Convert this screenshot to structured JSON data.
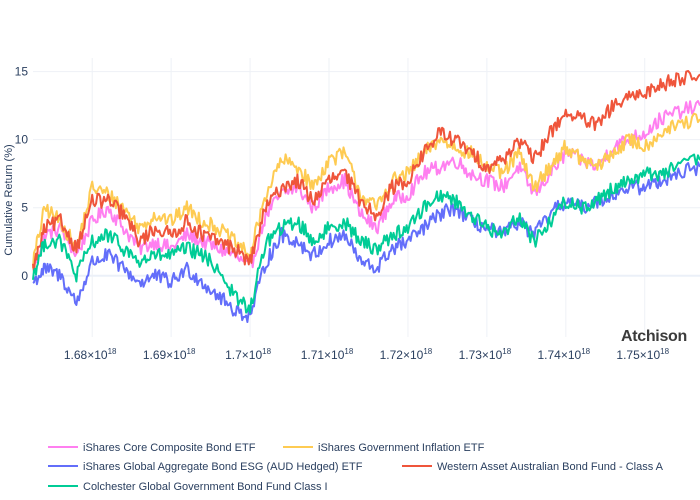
{
  "watermark": "Atchison",
  "chart_data": {
    "type": "line",
    "title": "",
    "xlabel": "",
    "ylabel": "Cumulative Return (%)",
    "xlim": [
      1.6725e+18,
      1.757e+18
    ],
    "ylim": [
      -4.5,
      16.0
    ],
    "xticks": [
      {
        "value": 1.68e+18,
        "mantissa": "1.68×10",
        "exp": "18"
      },
      {
        "value": 1.69e+18,
        "mantissa": "1.69×10",
        "exp": "18"
      },
      {
        "value": 1.7e+18,
        "mantissa": "1.7×10",
        "exp": "18"
      },
      {
        "value": 1.71e+18,
        "mantissa": "1.71×10",
        "exp": "18"
      },
      {
        "value": 1.72e+18,
        "mantissa": "1.72×10",
        "exp": "18"
      },
      {
        "value": 1.73e+18,
        "mantissa": "1.73×10",
        "exp": "18"
      },
      {
        "value": 1.74e+18,
        "mantissa": "1.74×10",
        "exp": "18"
      },
      {
        "value": 1.75e+18,
        "mantissa": "1.75×10",
        "exp": "18"
      }
    ],
    "yticks": [
      {
        "value": 0,
        "label": "0"
      },
      {
        "value": 5,
        "label": "5"
      },
      {
        "value": 10,
        "label": "10"
      },
      {
        "value": 15,
        "label": "15"
      }
    ],
    "grid": true,
    "legend_position": "bottom",
    "series": [
      {
        "name": "iShares Core Composite Bond ETF",
        "color": "#ff7ff0",
        "x": [
          1.6725e+18,
          1.674e+18,
          1.676e+18,
          1.678e+18,
          1.68e+18,
          1.682e+18,
          1.684e+18,
          1.686e+18,
          1.688e+18,
          1.69e+18,
          1.692e+18,
          1.694e+18,
          1.696e+18,
          1.698e+18,
          1.7e+18,
          1.702e+18,
          1.704e+18,
          1.706e+18,
          1.708e+18,
          1.71e+18,
          1.712e+18,
          1.714e+18,
          1.716e+18,
          1.718e+18,
          1.72e+18,
          1.722e+18,
          1.724e+18,
          1.726e+18,
          1.728e+18,
          1.73e+18,
          1.732e+18,
          1.734e+18,
          1.736e+18,
          1.738e+18,
          1.74e+18,
          1.742e+18,
          1.744e+18,
          1.746e+18,
          1.748e+18,
          1.75e+18,
          1.752e+18,
          1.754e+18,
          1.757e+18
        ],
        "y": [
          0.5,
          3.0,
          3.5,
          1.5,
          4.0,
          5.0,
          3.5,
          2.0,
          2.5,
          2.0,
          3.0,
          2.5,
          2.0,
          1.5,
          0.5,
          4.5,
          6.0,
          6.5,
          5.0,
          6.5,
          7.0,
          4.5,
          3.5,
          5.5,
          6.0,
          7.5,
          8.0,
          8.5,
          7.5,
          7.0,
          6.5,
          8.0,
          6.0,
          7.5,
          9.0,
          8.5,
          8.0,
          9.5,
          10.0,
          10.5,
          11.5,
          12.0,
          12.5
        ]
      },
      {
        "name": "iShares Government Inflation ETF",
        "color": "#fecb52",
        "x": [
          1.6725e+18,
          1.674e+18,
          1.676e+18,
          1.678e+18,
          1.68e+18,
          1.682e+18,
          1.684e+18,
          1.686e+18,
          1.688e+18,
          1.69e+18,
          1.692e+18,
          1.694e+18,
          1.696e+18,
          1.698e+18,
          1.7e+18,
          1.702e+18,
          1.704e+18,
          1.706e+18,
          1.708e+18,
          1.71e+18,
          1.712e+18,
          1.714e+18,
          1.716e+18,
          1.718e+18,
          1.72e+18,
          1.722e+18,
          1.724e+18,
          1.726e+18,
          1.728e+18,
          1.73e+18,
          1.732e+18,
          1.734e+18,
          1.736e+18,
          1.738e+18,
          1.74e+18,
          1.742e+18,
          1.744e+18,
          1.746e+18,
          1.748e+18,
          1.75e+18,
          1.752e+18,
          1.754e+18,
          1.757e+18
        ],
        "y": [
          1.0,
          5.0,
          4.0,
          2.0,
          6.5,
          6.0,
          5.0,
          3.5,
          4.5,
          4.0,
          5.0,
          4.0,
          3.5,
          2.5,
          1.5,
          6.0,
          8.5,
          8.0,
          6.5,
          8.5,
          9.0,
          6.0,
          5.0,
          7.0,
          7.5,
          9.0,
          10.0,
          9.5,
          9.0,
          8.0,
          7.5,
          9.0,
          6.5,
          8.0,
          9.5,
          8.5,
          8.0,
          9.0,
          10.0,
          9.5,
          10.5,
          11.0,
          11.5
        ]
      },
      {
        "name": "iShares Global Aggregate Bond ESG (AUD Hedged) ETF",
        "color": "#636efa",
        "x": [
          1.6725e+18,
          1.674e+18,
          1.676e+18,
          1.678e+18,
          1.68e+18,
          1.682e+18,
          1.684e+18,
          1.686e+18,
          1.688e+18,
          1.69e+18,
          1.692e+18,
          1.694e+18,
          1.696e+18,
          1.698e+18,
          1.7e+18,
          1.702e+18,
          1.704e+18,
          1.706e+18,
          1.708e+18,
          1.71e+18,
          1.712e+18,
          1.714e+18,
          1.716e+18,
          1.718e+18,
          1.72e+18,
          1.722e+18,
          1.724e+18,
          1.726e+18,
          1.728e+18,
          1.73e+18,
          1.732e+18,
          1.734e+18,
          1.736e+18,
          1.738e+18,
          1.74e+18,
          1.742e+18,
          1.744e+18,
          1.746e+18,
          1.748e+18,
          1.75e+18,
          1.752e+18,
          1.754e+18,
          1.757e+18
        ],
        "y": [
          -0.5,
          0.5,
          0.0,
          -2.0,
          1.0,
          1.5,
          0.5,
          -0.5,
          0.0,
          -0.5,
          0.5,
          -0.5,
          -1.5,
          -2.5,
          -3.0,
          1.0,
          3.0,
          2.5,
          1.5,
          2.5,
          3.0,
          1.0,
          0.5,
          2.0,
          2.5,
          3.5,
          4.5,
          5.0,
          4.0,
          3.5,
          3.0,
          4.0,
          3.0,
          4.5,
          5.5,
          5.0,
          5.5,
          6.0,
          6.5,
          6.5,
          7.0,
          7.5,
          8.0
        ]
      },
      {
        "name": "Western Asset Australian Bond Fund - Class A",
        "color": "#ef553b",
        "x": [
          1.6725e+18,
          1.674e+18,
          1.676e+18,
          1.678e+18,
          1.68e+18,
          1.682e+18,
          1.684e+18,
          1.686e+18,
          1.688e+18,
          1.69e+18,
          1.692e+18,
          1.694e+18,
          1.696e+18,
          1.698e+18,
          1.7e+18,
          1.702e+18,
          1.704e+18,
          1.706e+18,
          1.708e+18,
          1.71e+18,
          1.712e+18,
          1.714e+18,
          1.716e+18,
          1.718e+18,
          1.72e+18,
          1.722e+18,
          1.724e+18,
          1.726e+18,
          1.728e+18,
          1.73e+18,
          1.732e+18,
          1.734e+18,
          1.736e+18,
          1.738e+18,
          1.74e+18,
          1.742e+18,
          1.744e+18,
          1.746e+18,
          1.748e+18,
          1.75e+18,
          1.752e+18,
          1.754e+18,
          1.757e+18
        ],
        "y": [
          0.5,
          3.5,
          4.0,
          2.0,
          5.5,
          5.5,
          4.5,
          2.5,
          3.5,
          3.0,
          4.0,
          3.0,
          2.5,
          2.0,
          1.0,
          5.0,
          6.5,
          7.0,
          5.5,
          7.0,
          7.5,
          5.5,
          4.5,
          6.5,
          7.0,
          9.0,
          10.5,
          10.0,
          9.0,
          8.0,
          8.5,
          10.0,
          8.5,
          10.5,
          12.0,
          11.5,
          11.0,
          12.5,
          13.0,
          13.5,
          14.0,
          14.5,
          14.8
        ]
      },
      {
        "name": "Colchester Global Government Bond Fund Class I",
        "color": "#00cc96",
        "x": [
          1.6725e+18,
          1.674e+18,
          1.676e+18,
          1.678e+18,
          1.68e+18,
          1.682e+18,
          1.684e+18,
          1.686e+18,
          1.688e+18,
          1.69e+18,
          1.692e+18,
          1.694e+18,
          1.696e+18,
          1.698e+18,
          1.7e+18,
          1.702e+18,
          1.704e+18,
          1.706e+18,
          1.708e+18,
          1.71e+18,
          1.712e+18,
          1.714e+18,
          1.716e+18,
          1.718e+18,
          1.72e+18,
          1.722e+18,
          1.724e+18,
          1.726e+18,
          1.728e+18,
          1.73e+18,
          1.732e+18,
          1.734e+18,
          1.736e+18,
          1.738e+18,
          1.74e+18,
          1.742e+18,
          1.744e+18,
          1.746e+18,
          1.748e+18,
          1.75e+18,
          1.752e+18,
          1.754e+18,
          1.757e+18
        ],
        "y": [
          0.0,
          2.5,
          2.5,
          0.0,
          2.5,
          3.0,
          2.0,
          1.0,
          1.5,
          1.5,
          2.0,
          1.5,
          0.5,
          -1.5,
          -2.5,
          2.5,
          3.5,
          4.0,
          2.5,
          3.5,
          4.0,
          2.5,
          2.0,
          3.0,
          3.5,
          5.0,
          6.0,
          5.5,
          4.5,
          3.5,
          3.0,
          4.5,
          2.5,
          4.0,
          5.5,
          5.0,
          5.5,
          6.5,
          7.0,
          7.5,
          7.5,
          8.0,
          8.5
        ]
      }
    ]
  }
}
